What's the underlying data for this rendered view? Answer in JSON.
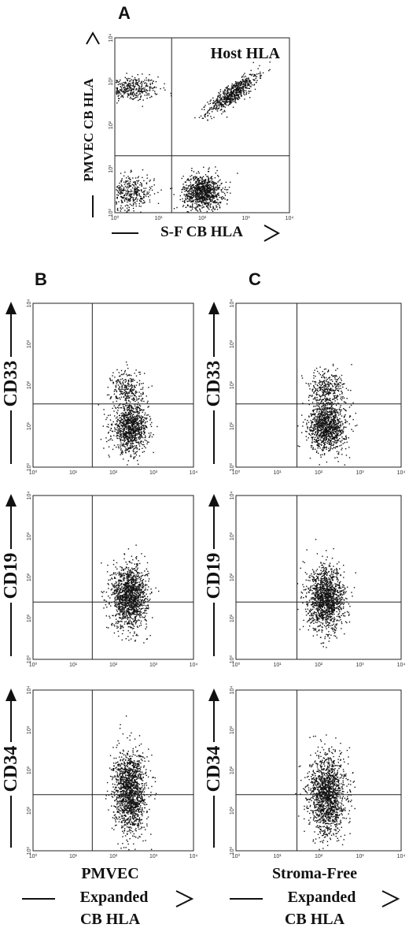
{
  "panels": {
    "a": "A",
    "b": "B",
    "c": "C"
  },
  "chart_data": [
    {
      "id": "A",
      "type": "scatter",
      "title": "Host HLA",
      "xlabel": "S-F CB HLA",
      "ylabel": "PMVEC CB HLA",
      "x_scale": "log",
      "y_scale": "log",
      "xlim": [
        1,
        10000
      ],
      "ylim": [
        1,
        10000
      ],
      "x_ticks": [
        "10⁰",
        "10¹",
        "10²",
        "10³",
        "10⁴"
      ],
      "y_ticks": [
        "10⁰",
        "10¹",
        "10²",
        "10³",
        "10⁴"
      ],
      "gates": {
        "x": 20,
        "y": 20
      },
      "clusters": [
        {
          "x": 2,
          "y": 700,
          "n": 420,
          "sx": 0.35,
          "sy": 0.14
        },
        {
          "x": 500,
          "y": 550,
          "n": 650,
          "sx": 0.28,
          "sy": 0.22,
          "corr": 0.85
        },
        {
          "x": 2,
          "y": 3,
          "n": 420,
          "sx": 0.3,
          "sy": 0.2
        },
        {
          "x": 100,
          "y": 3,
          "n": 950,
          "sx": 0.22,
          "sy": 0.2
        }
      ]
    },
    {
      "id": "B-CD33",
      "type": "scatter",
      "xlabel": "",
      "ylabel": "CD33",
      "x_scale": "log",
      "y_scale": "log",
      "xlim": [
        1,
        10000
      ],
      "ylim": [
        1,
        10000
      ],
      "x_ticks": [
        "10⁰",
        "10¹",
        "10²",
        "10³",
        "10⁴"
      ],
      "y_ticks": [
        "10⁰",
        "10¹",
        "10²",
        "10³",
        "10⁴"
      ],
      "gates": {
        "x": 30,
        "y": 35
      },
      "clusters": [
        {
          "x": 260,
          "y": 9,
          "n": 1000,
          "sx": 0.22,
          "sy": 0.28
        },
        {
          "x": 220,
          "y": 80,
          "n": 280,
          "sx": 0.2,
          "sy": 0.25
        }
      ]
    },
    {
      "id": "B-CD19",
      "type": "scatter",
      "xlabel": "",
      "ylabel": "CD19",
      "x_scale": "log",
      "y_scale": "log",
      "xlim": [
        1,
        10000
      ],
      "ylim": [
        1,
        10000
      ],
      "x_ticks": [
        "10⁰",
        "10¹",
        "10²",
        "10³",
        "10⁴"
      ],
      "y_ticks": [
        "10⁰",
        "10¹",
        "10²",
        "10³",
        "10⁴"
      ],
      "gates": {
        "x": 30,
        "y": 25
      },
      "clusters": [
        {
          "x": 250,
          "y": 35,
          "n": 1400,
          "sx": 0.22,
          "sy": 0.38
        }
      ]
    },
    {
      "id": "B-CD34",
      "type": "scatter",
      "xlabel": "PMVEC Expanded CB HLA",
      "ylabel": "CD34",
      "x_scale": "log",
      "y_scale": "log",
      "xlim": [
        1,
        10000
      ],
      "ylim": [
        1,
        10000
      ],
      "x_ticks": [
        "10⁰",
        "10¹",
        "10²",
        "10³",
        "10⁴"
      ],
      "y_ticks": [
        "10⁰",
        "10¹",
        "10²",
        "10³",
        "10⁴"
      ],
      "gates": {
        "x": 30,
        "y": 25
      },
      "clusters": [
        {
          "x": 250,
          "y": 30,
          "n": 1500,
          "sx": 0.2,
          "sy": 0.5
        }
      ]
    },
    {
      "id": "C-CD33",
      "type": "scatter",
      "xlabel": "",
      "ylabel": "CD33",
      "x_scale": "log",
      "y_scale": "log",
      "xlim": [
        1,
        10000
      ],
      "ylim": [
        1,
        10000
      ],
      "x_ticks": [
        "10⁰",
        "10¹",
        "10²",
        "10³",
        "10⁴"
      ],
      "y_ticks": [
        "10⁰",
        "10¹",
        "10²",
        "10³",
        "10⁴"
      ],
      "gates": {
        "x": 30,
        "y": 35
      },
      "clusters": [
        {
          "x": 160,
          "y": 10,
          "n": 1100,
          "sx": 0.22,
          "sy": 0.3
        },
        {
          "x": 150,
          "y": 80,
          "n": 350,
          "sx": 0.22,
          "sy": 0.25
        }
      ]
    },
    {
      "id": "C-CD19",
      "type": "scatter",
      "xlabel": "",
      "ylabel": "CD19",
      "x_scale": "log",
      "y_scale": "log",
      "xlim": [
        1,
        10000
      ],
      "ylim": [
        1,
        10000
      ],
      "x_ticks": [
        "10⁰",
        "10¹",
        "10²",
        "10³",
        "10⁴"
      ],
      "y_ticks": [
        "10⁰",
        "10¹",
        "10²",
        "10³",
        "10⁴"
      ],
      "gates": {
        "x": 30,
        "y": 25
      },
      "clusters": [
        {
          "x": 150,
          "y": 30,
          "n": 1400,
          "sx": 0.22,
          "sy": 0.38
        }
      ]
    },
    {
      "id": "C-CD34",
      "type": "scatter",
      "xlabel": "Stroma-Free Expanded CB HLA",
      "ylabel": "CD34",
      "x_scale": "log",
      "y_scale": "log",
      "xlim": [
        1,
        10000
      ],
      "ylim": [
        1,
        10000
      ],
      "x_ticks": [
        "10⁰",
        "10¹",
        "10²",
        "10³",
        "10⁴"
      ],
      "y_ticks": [
        "10⁰",
        "10¹",
        "10²",
        "10³",
        "10⁴"
      ],
      "gates": {
        "x": 30,
        "y": 25
      },
      "clusters": [
        {
          "x": 160,
          "y": 25,
          "n": 1500,
          "sx": 0.22,
          "sy": 0.5
        }
      ]
    }
  ],
  "bottom_labels": {
    "b_line1": "PMVEC",
    "b_line2": "Expanded",
    "b_line3": "CB HLA",
    "c_line1": "Stroma-Free",
    "c_line2": "Expanded",
    "c_line3": "CB HLA"
  },
  "top_x_label": "S-F CB HLA",
  "top_y_label": "PMVEC CB HLA"
}
